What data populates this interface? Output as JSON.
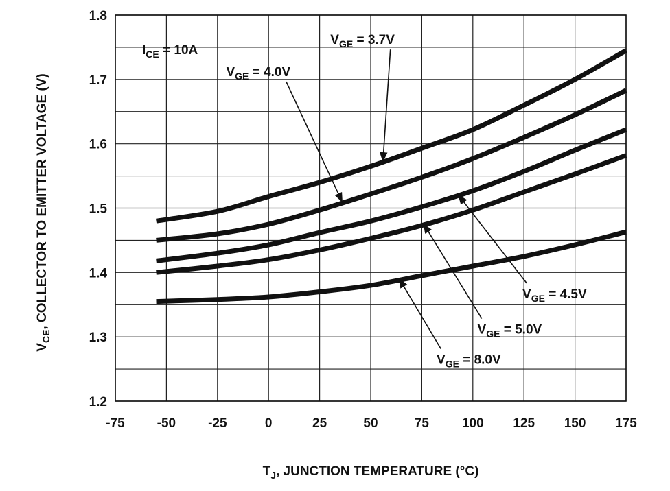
{
  "chart_data": {
    "type": "line",
    "title": "",
    "condition": {
      "main": "I",
      "sub": "CE",
      "rest": " = 10A"
    },
    "xlabel": {
      "main": "T",
      "sub": "J",
      "rest": ", JUNCTION TEMPERATURE (°C)"
    },
    "ylabel": {
      "main": "V",
      "sub": "CE",
      "rest": ", COLLECTOR TO EMITTER VOLTAGE (V)"
    },
    "xlim": [
      -75,
      175
    ],
    "ylim": [
      1.2,
      1.8
    ],
    "xticks": [
      -75,
      -50,
      -25,
      0,
      25,
      50,
      75,
      100,
      125,
      150,
      175
    ],
    "xtick_labels": [
      "-75",
      "-50",
      "-25",
      "0",
      "25",
      "50",
      "75",
      "100",
      "125",
      "150",
      "175"
    ],
    "yticks": [
      1.2,
      1.3,
      1.4,
      1.5,
      1.6,
      1.7,
      1.8
    ],
    "ytick_labels": [
      "1.2",
      "1.3",
      "1.4",
      "1.5",
      "1.6",
      "1.7",
      "1.8"
    ],
    "grid": true,
    "legend": "inline annotations",
    "series": [
      {
        "name": "V_GE = 3.7V",
        "label_main": "V",
        "label_sub": "GE",
        "label_rest": " = 3.7V",
        "x": [
          -55,
          -25,
          0,
          25,
          50,
          75,
          100,
          125,
          150,
          175
        ],
        "y": [
          1.48,
          1.495,
          1.518,
          1.54,
          1.565,
          1.593,
          1.622,
          1.66,
          1.7,
          1.745
        ]
      },
      {
        "name": "V_GE = 4.0V",
        "label_main": "V",
        "label_sub": "GE",
        "label_rest": " = 4.0V",
        "x": [
          -55,
          -25,
          0,
          25,
          50,
          75,
          100,
          125,
          150,
          175
        ],
        "y": [
          1.45,
          1.46,
          1.475,
          1.497,
          1.522,
          1.548,
          1.577,
          1.61,
          1.645,
          1.683
        ]
      },
      {
        "name": "V_GE = 4.5V",
        "label_main": "V",
        "label_sub": "GE",
        "label_rest": " = 4.5V",
        "x": [
          -55,
          -25,
          0,
          25,
          50,
          75,
          100,
          125,
          150,
          175
        ],
        "y": [
          1.418,
          1.43,
          1.443,
          1.462,
          1.48,
          1.502,
          1.527,
          1.557,
          1.59,
          1.622
        ]
      },
      {
        "name": "V_GE = 5.0V",
        "label_main": "V",
        "label_sub": "GE",
        "label_rest": " = 5.0V",
        "x": [
          -55,
          -25,
          0,
          25,
          50,
          75,
          100,
          125,
          150,
          175
        ],
        "y": [
          1.4,
          1.41,
          1.42,
          1.435,
          1.453,
          1.473,
          1.497,
          1.525,
          1.553,
          1.582
        ]
      },
      {
        "name": "V_GE = 8.0V",
        "label_main": "V",
        "label_sub": "GE",
        "label_rest": " = 8.0V",
        "x": [
          -55,
          -25,
          0,
          25,
          50,
          75,
          100,
          125,
          150,
          175
        ],
        "y": [
          1.355,
          1.358,
          1.362,
          1.37,
          1.38,
          1.395,
          1.41,
          1.425,
          1.443,
          1.463
        ]
      }
    ],
    "annotations": [
      {
        "series": 0,
        "text_x": 46,
        "text_y": 1.755,
        "arrow_to_x": 56,
        "arrow_to_y": 1.573
      },
      {
        "series": 1,
        "text_x": -5,
        "text_y": 1.705,
        "arrow_to_x": 36,
        "arrow_to_y": 1.51
      },
      {
        "series": 2,
        "text_x": 140,
        "text_y": 1.36,
        "arrow_to_x": 93,
        "arrow_to_y": 1.52
      },
      {
        "series": 3,
        "text_x": 118,
        "text_y": 1.305,
        "arrow_to_x": 76,
        "arrow_to_y": 1.475
      },
      {
        "series": 4,
        "text_x": 98,
        "text_y": 1.258,
        "arrow_to_x": 64,
        "arrow_to_y": 1.39
      }
    ]
  }
}
